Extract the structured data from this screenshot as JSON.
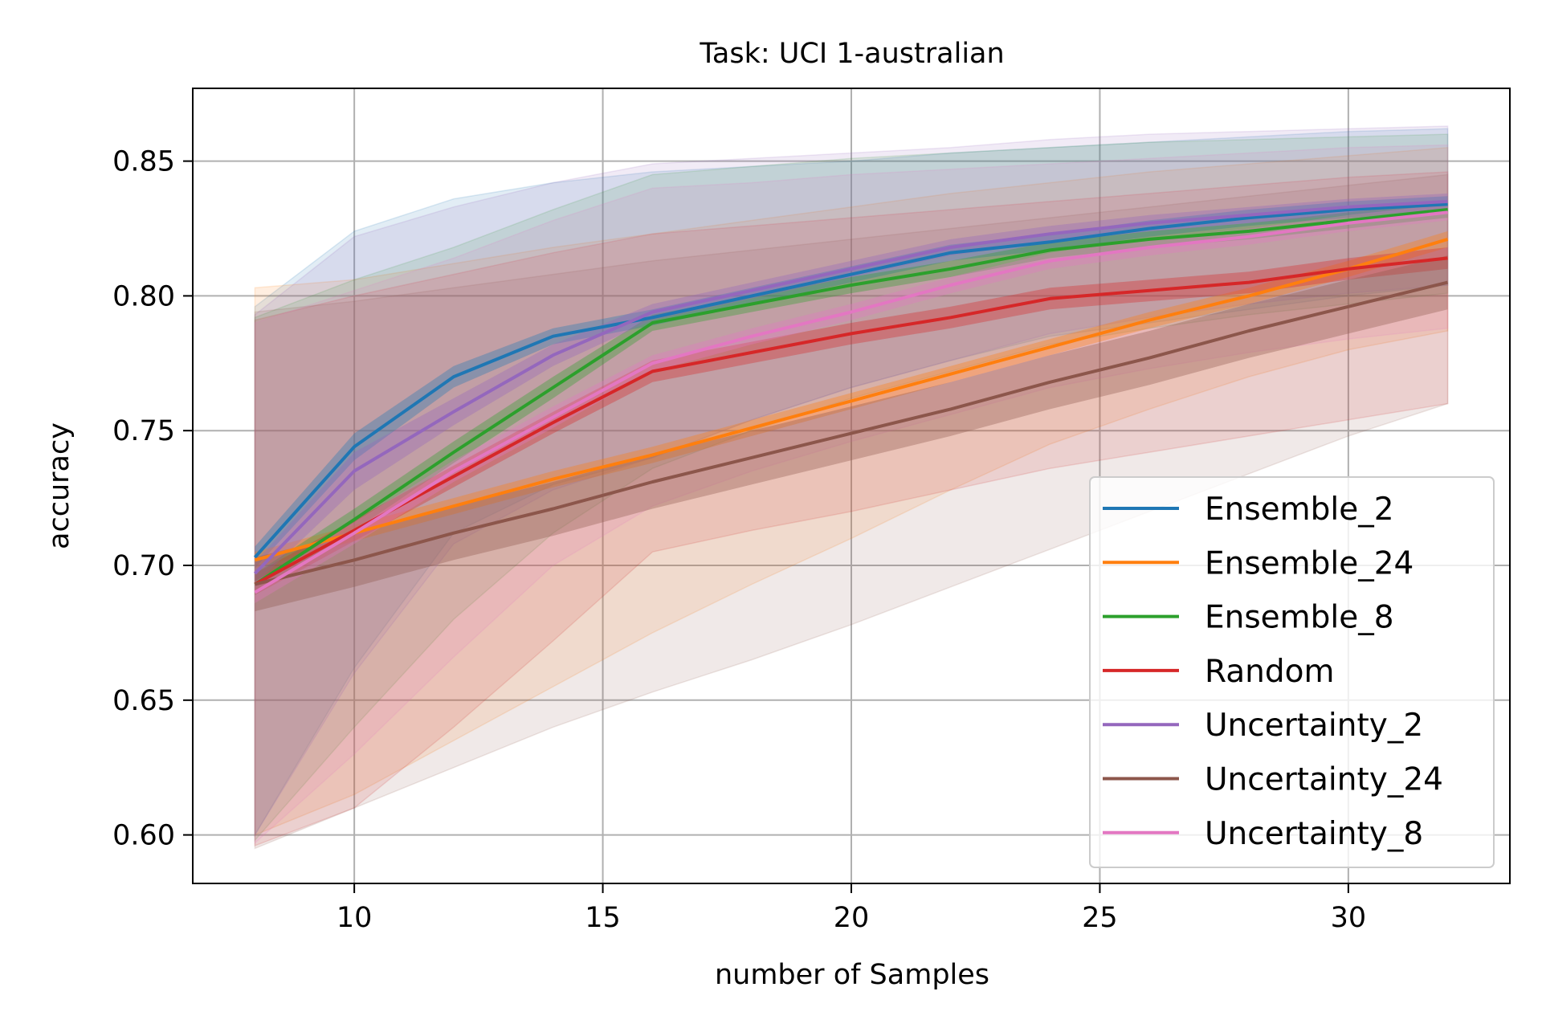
{
  "chart_data": {
    "type": "line",
    "title": "Task: UCI 1-australian",
    "xlabel": "number of Samples",
    "ylabel": "accuracy",
    "xlim": [
      6.75,
      33.25
    ],
    "ylim": [
      0.582,
      0.877
    ],
    "xticks": [
      "10",
      "15",
      "20",
      "25",
      "30"
    ],
    "yticks": [
      "0.60",
      "0.65",
      "0.70",
      "0.75",
      "0.80",
      "0.85"
    ],
    "grid": true,
    "legend_position": "lower-right",
    "x": [
      8,
      10,
      12,
      14,
      16,
      18,
      20,
      22,
      24,
      26,
      28,
      30,
      32
    ],
    "series": [
      {
        "name": "Ensemble_2",
        "color": "#1f77b4",
        "values": [
          0.703,
          0.744,
          0.77,
          0.785,
          0.792,
          0.8,
          0.808,
          0.816,
          0.82,
          0.825,
          0.829,
          0.832,
          0.834
        ],
        "inner_band": [
          [
            0.699,
            0.707
          ],
          [
            0.739,
            0.749
          ],
          [
            0.766,
            0.774
          ],
          [
            0.782,
            0.788
          ],
          [
            0.789,
            0.795
          ],
          [
            0.797,
            0.803
          ],
          [
            0.805,
            0.811
          ],
          [
            0.813,
            0.819
          ],
          [
            0.817,
            0.823
          ],
          [
            0.822,
            0.828
          ],
          [
            0.826,
            0.832
          ],
          [
            0.829,
            0.835
          ],
          [
            0.831,
            0.837
          ]
        ],
        "outer_band": [
          [
            0.6,
            0.796
          ],
          [
            0.662,
            0.824
          ],
          [
            0.712,
            0.836
          ],
          [
            0.73,
            0.842
          ],
          [
            0.74,
            0.846
          ],
          [
            0.754,
            0.848
          ],
          [
            0.766,
            0.85
          ],
          [
            0.776,
            0.853
          ],
          [
            0.785,
            0.855
          ],
          [
            0.79,
            0.857
          ],
          [
            0.795,
            0.859
          ],
          [
            0.8,
            0.861
          ],
          [
            0.804,
            0.862
          ]
        ]
      },
      {
        "name": "Ensemble_24",
        "color": "#ff7f0e",
        "values": [
          0.702,
          0.712,
          0.722,
          0.732,
          0.741,
          0.751,
          0.761,
          0.771,
          0.781,
          0.791,
          0.8,
          0.81,
          0.821
        ],
        "inner_band": [
          [
            0.699,
            0.705
          ],
          [
            0.709,
            0.715
          ],
          [
            0.719,
            0.725
          ],
          [
            0.729,
            0.735
          ],
          [
            0.738,
            0.744
          ],
          [
            0.748,
            0.754
          ],
          [
            0.758,
            0.764
          ],
          [
            0.768,
            0.774
          ],
          [
            0.778,
            0.784
          ],
          [
            0.788,
            0.794
          ],
          [
            0.797,
            0.803
          ],
          [
            0.807,
            0.813
          ],
          [
            0.818,
            0.824
          ]
        ],
        "outer_band": [
          [
            0.6,
            0.803
          ],
          [
            0.615,
            0.806
          ],
          [
            0.635,
            0.812
          ],
          [
            0.655,
            0.818
          ],
          [
            0.675,
            0.823
          ],
          [
            0.693,
            0.828
          ],
          [
            0.71,
            0.833
          ],
          [
            0.728,
            0.838
          ],
          [
            0.745,
            0.842
          ],
          [
            0.758,
            0.846
          ],
          [
            0.77,
            0.849
          ],
          [
            0.78,
            0.852
          ],
          [
            0.787,
            0.855
          ]
        ]
      },
      {
        "name": "Ensemble_8",
        "color": "#2ca02c",
        "values": [
          0.693,
          0.717,
          0.742,
          0.766,
          0.79,
          0.797,
          0.804,
          0.81,
          0.817,
          0.821,
          0.824,
          0.828,
          0.832
        ],
        "inner_band": [
          [
            0.689,
            0.697
          ],
          [
            0.713,
            0.721
          ],
          [
            0.738,
            0.746
          ],
          [
            0.762,
            0.77
          ],
          [
            0.787,
            0.793
          ],
          [
            0.794,
            0.8
          ],
          [
            0.801,
            0.807
          ],
          [
            0.807,
            0.813
          ],
          [
            0.814,
            0.82
          ],
          [
            0.818,
            0.824
          ],
          [
            0.821,
            0.827
          ],
          [
            0.825,
            0.831
          ],
          [
            0.829,
            0.835
          ]
        ],
        "outer_band": [
          [
            0.598,
            0.792
          ],
          [
            0.64,
            0.806
          ],
          [
            0.68,
            0.818
          ],
          [
            0.712,
            0.832
          ],
          [
            0.736,
            0.845
          ],
          [
            0.75,
            0.848
          ],
          [
            0.762,
            0.851
          ],
          [
            0.772,
            0.853
          ],
          [
            0.782,
            0.855
          ],
          [
            0.788,
            0.857
          ],
          [
            0.793,
            0.858
          ],
          [
            0.797,
            0.859
          ],
          [
            0.801,
            0.86
          ]
        ]
      },
      {
        "name": "Random",
        "color": "#d62728",
        "values": [
          0.693,
          0.713,
          0.733,
          0.753,
          0.772,
          0.779,
          0.786,
          0.792,
          0.799,
          0.802,
          0.805,
          0.81,
          0.814
        ],
        "inner_band": [
          [
            0.689,
            0.697
          ],
          [
            0.709,
            0.717
          ],
          [
            0.729,
            0.737
          ],
          [
            0.749,
            0.757
          ],
          [
            0.768,
            0.776
          ],
          [
            0.775,
            0.783
          ],
          [
            0.782,
            0.79
          ],
          [
            0.788,
            0.796
          ],
          [
            0.795,
            0.803
          ],
          [
            0.798,
            0.806
          ],
          [
            0.801,
            0.809
          ],
          [
            0.806,
            0.814
          ],
          [
            0.81,
            0.818
          ]
        ],
        "outer_band": [
          [
            0.596,
            0.791
          ],
          [
            0.61,
            0.8
          ],
          [
            0.64,
            0.808
          ],
          [
            0.672,
            0.816
          ],
          [
            0.705,
            0.823
          ],
          [
            0.713,
            0.826
          ],
          [
            0.72,
            0.829
          ],
          [
            0.728,
            0.832
          ],
          [
            0.736,
            0.835
          ],
          [
            0.742,
            0.838
          ],
          [
            0.748,
            0.841
          ],
          [
            0.754,
            0.844
          ],
          [
            0.76,
            0.846
          ]
        ]
      },
      {
        "name": "Uncertainty_2",
        "color": "#9467bd",
        "values": [
          0.697,
          0.735,
          0.757,
          0.778,
          0.794,
          0.802,
          0.81,
          0.818,
          0.823,
          0.827,
          0.83,
          0.833,
          0.835
        ],
        "inner_band": [
          [
            0.693,
            0.701
          ],
          [
            0.728,
            0.742
          ],
          [
            0.752,
            0.762
          ],
          [
            0.774,
            0.782
          ],
          [
            0.791,
            0.797
          ],
          [
            0.799,
            0.805
          ],
          [
            0.807,
            0.813
          ],
          [
            0.815,
            0.821
          ],
          [
            0.82,
            0.826
          ],
          [
            0.824,
            0.83
          ],
          [
            0.827,
            0.833
          ],
          [
            0.83,
            0.836
          ],
          [
            0.832,
            0.838
          ]
        ],
        "outer_band": [
          [
            0.6,
            0.793
          ],
          [
            0.66,
            0.822
          ],
          [
            0.708,
            0.833
          ],
          [
            0.728,
            0.842
          ],
          [
            0.74,
            0.849
          ],
          [
            0.754,
            0.851
          ],
          [
            0.766,
            0.853
          ],
          [
            0.776,
            0.855
          ],
          [
            0.786,
            0.858
          ],
          [
            0.792,
            0.86
          ],
          [
            0.797,
            0.861
          ],
          [
            0.801,
            0.862
          ],
          [
            0.804,
            0.863
          ]
        ]
      },
      {
        "name": "Uncertainty_24",
        "color": "#8c564b",
        "values": [
          0.693,
          0.702,
          0.712,
          0.721,
          0.731,
          0.74,
          0.749,
          0.758,
          0.768,
          0.777,
          0.787,
          0.796,
          0.805
        ],
        "inner_band": [
          [
            0.683,
            0.703
          ],
          [
            0.692,
            0.712
          ],
          [
            0.702,
            0.722
          ],
          [
            0.711,
            0.731
          ],
          [
            0.721,
            0.741
          ],
          [
            0.73,
            0.75
          ],
          [
            0.739,
            0.759
          ],
          [
            0.748,
            0.768
          ],
          [
            0.758,
            0.778
          ],
          [
            0.767,
            0.787
          ],
          [
            0.777,
            0.797
          ],
          [
            0.786,
            0.806
          ],
          [
            0.795,
            0.815
          ]
        ],
        "outer_band": [
          [
            0.595,
            0.794
          ],
          [
            0.61,
            0.798
          ],
          [
            0.625,
            0.803
          ],
          [
            0.64,
            0.808
          ],
          [
            0.653,
            0.813
          ],
          [
            0.665,
            0.817
          ],
          [
            0.678,
            0.821
          ],
          [
            0.692,
            0.825
          ],
          [
            0.706,
            0.829
          ],
          [
            0.72,
            0.833
          ],
          [
            0.734,
            0.837
          ],
          [
            0.748,
            0.841
          ],
          [
            0.76,
            0.845
          ]
        ]
      },
      {
        "name": "Uncertainty_8",
        "color": "#e377c2",
        "values": [
          0.69,
          0.712,
          0.735,
          0.755,
          0.775,
          0.785,
          0.794,
          0.804,
          0.813,
          0.818,
          0.822,
          0.827,
          0.831
        ],
        "inner_band": [
          [
            0.686,
            0.694
          ],
          [
            0.708,
            0.716
          ],
          [
            0.731,
            0.739
          ],
          [
            0.751,
            0.759
          ],
          [
            0.772,
            0.778
          ],
          [
            0.782,
            0.788
          ],
          [
            0.791,
            0.797
          ],
          [
            0.801,
            0.807
          ],
          [
            0.81,
            0.816
          ],
          [
            0.815,
            0.821
          ],
          [
            0.819,
            0.825
          ],
          [
            0.824,
            0.83
          ],
          [
            0.828,
            0.834
          ]
        ],
        "outer_band": [
          [
            0.597,
            0.79
          ],
          [
            0.63,
            0.802
          ],
          [
            0.666,
            0.814
          ],
          [
            0.7,
            0.828
          ],
          [
            0.722,
            0.84
          ],
          [
            0.735,
            0.842
          ],
          [
            0.746,
            0.845
          ],
          [
            0.756,
            0.847
          ],
          [
            0.766,
            0.849
          ],
          [
            0.773,
            0.851
          ],
          [
            0.779,
            0.853
          ],
          [
            0.784,
            0.855
          ],
          [
            0.788,
            0.856
          ]
        ]
      }
    ]
  }
}
